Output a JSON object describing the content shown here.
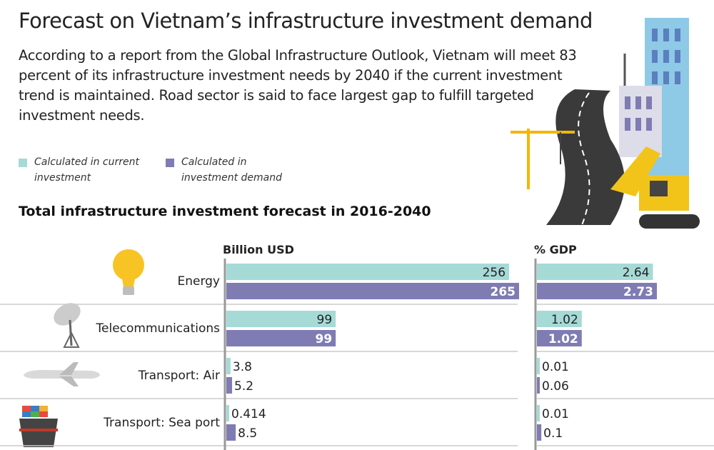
{
  "header": {
    "title": "Forecast on Vietnam’s infrastructure investment demand",
    "description": "According to a report from the Global Infrastructure Outlook, Vietnam will meet 83 percent of its infrastructure investment needs by 2040 if the current investment trend is maintained. Road sector is said to face largest gap to fulfill targeted investment needs."
  },
  "colors": {
    "current": "#a6dad7",
    "demand": "#7f7cb3",
    "axis": "#999999"
  },
  "chart_data": [
    {
      "type": "bar",
      "orientation": "horizontal",
      "title": "Total infrastructure investment forecast in 2016-2040",
      "unit_label": "Billion USD",
      "categories": [
        "Energy",
        "Telecommunications",
        "Transport: Air",
        "Transport: Sea port"
      ],
      "series": [
        {
          "name": "Calculated in current investment",
          "values": [
            256,
            99,
            3.8,
            0.414
          ],
          "labels": [
            "256",
            "99",
            "3.8",
            "0.414"
          ]
        },
        {
          "name": "Calculated in investment demand",
          "values": [
            265,
            99,
            5.2,
            8.5
          ],
          "labels": [
            "265",
            "99",
            "5.2",
            "8.5"
          ]
        }
      ],
      "legend": "top-left"
    },
    {
      "type": "bar",
      "orientation": "horizontal",
      "unit_label": "% GDP",
      "categories": [
        "Energy",
        "Telecommunications",
        "Transport: Air",
        "Transport: Sea port"
      ],
      "series": [
        {
          "name": "Calculated in current investment",
          "values": [
            2.64,
            1.02,
            0.01,
            0.01
          ],
          "labels": [
            "2.64",
            "1.02",
            "0.01",
            "0.01"
          ]
        },
        {
          "name": "Calculated in investment demand",
          "values": [
            2.73,
            1.02,
            0.06,
            0.1
          ],
          "labels": [
            "2.73",
            "1.02",
            "0.06",
            "0.1"
          ]
        }
      ]
    }
  ],
  "icons": [
    "light-bulb-icon",
    "satellite-dish-icon",
    "airplane-icon",
    "cargo-ship-icon",
    "construction-illustration"
  ]
}
